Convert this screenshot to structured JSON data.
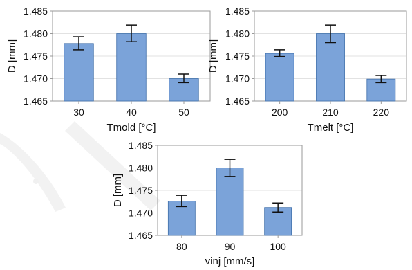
{
  "colors": {
    "bar": "#7ba3d9",
    "bar_edge": "#3f6faa",
    "frame": "#9a9a9a",
    "grid": "#e2e2e2",
    "error": "#111111",
    "watermark": "#f0f0f0"
  },
  "chart_data": [
    {
      "type": "bar",
      "categories": [
        "30",
        "40",
        "50"
      ],
      "values": [
        1.4778,
        1.48,
        1.47
      ],
      "errors": [
        [
          1.4764,
          1.4793
        ],
        [
          1.4782,
          1.4819
        ],
        [
          1.4691,
          1.471
        ]
      ],
      "xlabel": "Tmold [°C]",
      "ylabel": "D [mm]",
      "ylim": [
        1.465,
        1.485
      ],
      "yticks": [
        "1.485",
        "1.480",
        "1.475",
        "1.470",
        "1.465"
      ],
      "grid": true
    },
    {
      "type": "bar",
      "categories": [
        "200",
        "210",
        "220"
      ],
      "values": [
        1.4756,
        1.48,
        1.4699
      ],
      "errors": [
        [
          1.4749,
          1.4764
        ],
        [
          1.478,
          1.4819
        ],
        [
          1.4691,
          1.4707
        ]
      ],
      "xlabel": "Tmelt [°C]",
      "ylabel": "D [mm]",
      "ylim": [
        1.465,
        1.485
      ],
      "yticks": [
        "1.485",
        "1.480",
        "1.475",
        "1.470",
        "1.465"
      ],
      "grid": true
    },
    {
      "type": "bar",
      "categories": [
        "80",
        "90",
        "100"
      ],
      "values": [
        1.4726,
        1.48,
        1.4712
      ],
      "errors": [
        [
          1.4714,
          1.4739
        ],
        [
          1.4781,
          1.4819
        ],
        [
          1.4702,
          1.4722
        ]
      ],
      "xlabel": "vinj [mm/s]",
      "ylabel": "D [mm]",
      "ylim": [
        1.465,
        1.485
      ],
      "yticks": [
        "1.485",
        "1.480",
        "1.475",
        "1.470",
        "1.465"
      ],
      "grid": true
    }
  ]
}
